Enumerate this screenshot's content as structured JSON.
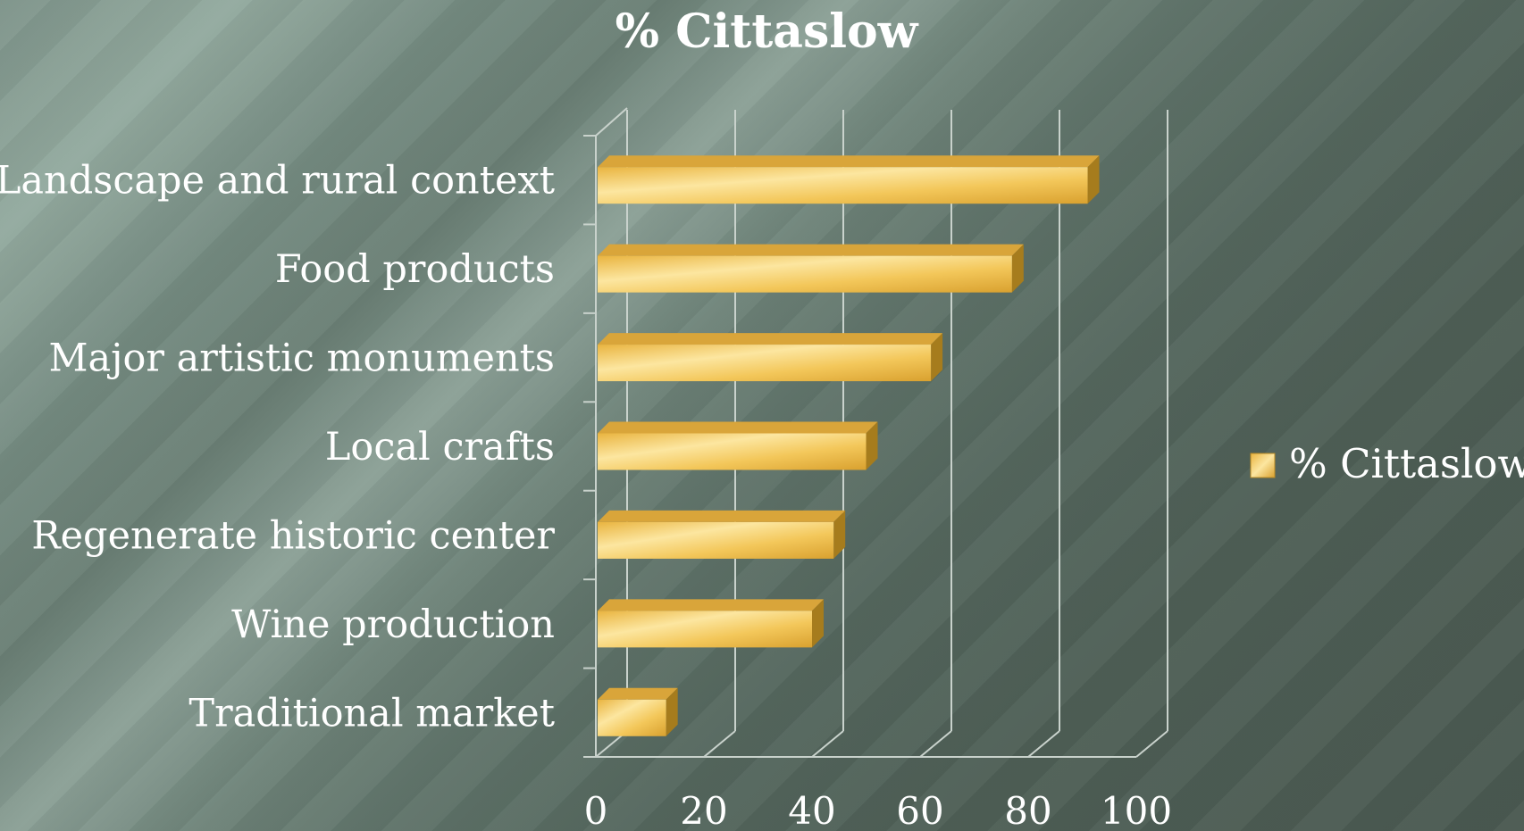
{
  "chart_data": {
    "type": "bar",
    "orientation": "horizontal",
    "three_d": true,
    "title": "% Cittaslow",
    "categories": [
      "Landscape and rural context",
      "Food products",
      "Major artistic monuments",
      "Local crafts",
      "Regenerate historic center",
      "Wine production",
      "Traditional market"
    ],
    "series": [
      {
        "name": "% Cittaslow",
        "values": [
          91,
          77,
          62,
          50,
          44,
          40,
          13
        ],
        "color": "#f2c14e"
      }
    ],
    "xlim": [
      0,
      100
    ],
    "x_ticks": [
      "0",
      "20",
      "40",
      "60",
      "80",
      "100"
    ],
    "grid": true,
    "legend": {
      "position": "right",
      "label": "% Cittaslow"
    },
    "colors": {
      "bar_front": "#f2c14e",
      "bar_highlight": "#fbe7a6",
      "bar_top": "#d9a53a",
      "bar_side": "#a67c1d",
      "gridline": "#c9d2cc"
    }
  }
}
